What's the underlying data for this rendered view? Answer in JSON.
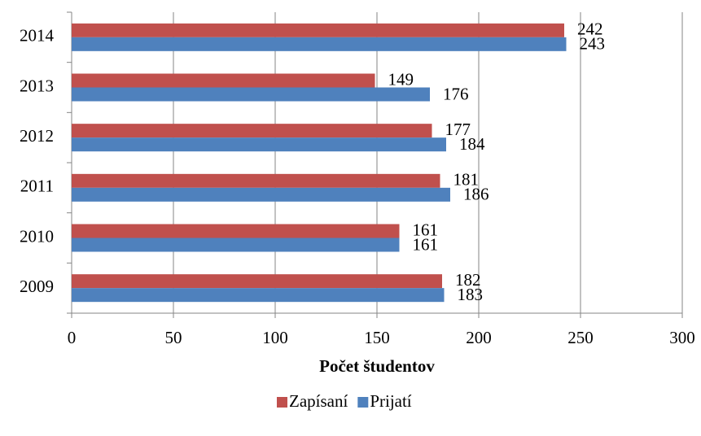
{
  "chart_data": {
    "type": "bar",
    "orientation": "horizontal",
    "categories": [
      "2009",
      "2010",
      "2011",
      "2012",
      "2013",
      "2014"
    ],
    "series": [
      {
        "name": "Zapísaní",
        "color": "#c0504d",
        "values": [
          182,
          161,
          181,
          177,
          149,
          242
        ]
      },
      {
        "name": "Prijatí",
        "color": "#4f81bd",
        "values": [
          183,
          161,
          186,
          184,
          176,
          243
        ]
      }
    ],
    "xlabel": "Počet študentov",
    "xlim": [
      0,
      300
    ],
    "xticks": [
      0,
      50,
      100,
      150,
      200,
      250,
      300
    ],
    "grid": true,
    "legend": "bottom"
  }
}
